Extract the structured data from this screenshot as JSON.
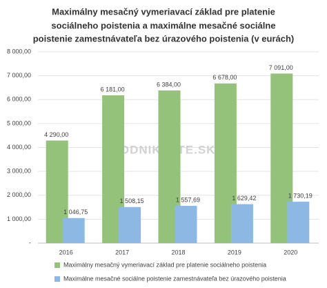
{
  "chart_data": {
    "type": "bar",
    "title": [
      "Maximálny mesačný vymeriavací základ pre platenie",
      "sociálneho poistenia a maximálne mesačné sociálne",
      "poistenie zamestnávateľa bez úrazového poistenia (v eurách)"
    ],
    "watermark": "PODNIKAJTE.SK",
    "categories": [
      "2016",
      "2017",
      "2018",
      "2019",
      "2020"
    ],
    "series": [
      {
        "name": "Maximálny mesačný vymeriavací základ pre platenie sociálneho poistenia",
        "color": "#95c27a",
        "values": [
          4290,
          6181,
          6384,
          6678,
          7091
        ],
        "value_labels": [
          "4 290,00",
          "6 181,00",
          "6 384,00",
          "6 678,00",
          "7 091,00"
        ]
      },
      {
        "name": "Maximálne mesačné sociálne poistenie zamestnávateľa bez úrazového poistenia",
        "color": "#8db8e4",
        "values": [
          1046.75,
          1508.15,
          1557.69,
          1629.42,
          1730.19
        ],
        "value_labels": [
          "1 046,75",
          "1 508,15",
          "1 557,69",
          "1 629,42",
          "1 730,19"
        ]
      }
    ],
    "ylim": [
      0,
      8000
    ],
    "yticks": [
      {
        "value": 0,
        "label": "-"
      },
      {
        "value": 1000,
        "label": "1 000,00"
      },
      {
        "value": 2000,
        "label": "2 000,00"
      },
      {
        "value": 3000,
        "label": "3 000,00"
      },
      {
        "value": 4000,
        "label": "4 000,00"
      },
      {
        "value": 5000,
        "label": "5 000,00"
      },
      {
        "value": 6000,
        "label": "6 000,00"
      },
      {
        "value": 7000,
        "label": "7 000,00"
      },
      {
        "value": 8000,
        "label": "8 000,00"
      }
    ],
    "grid": true
  }
}
